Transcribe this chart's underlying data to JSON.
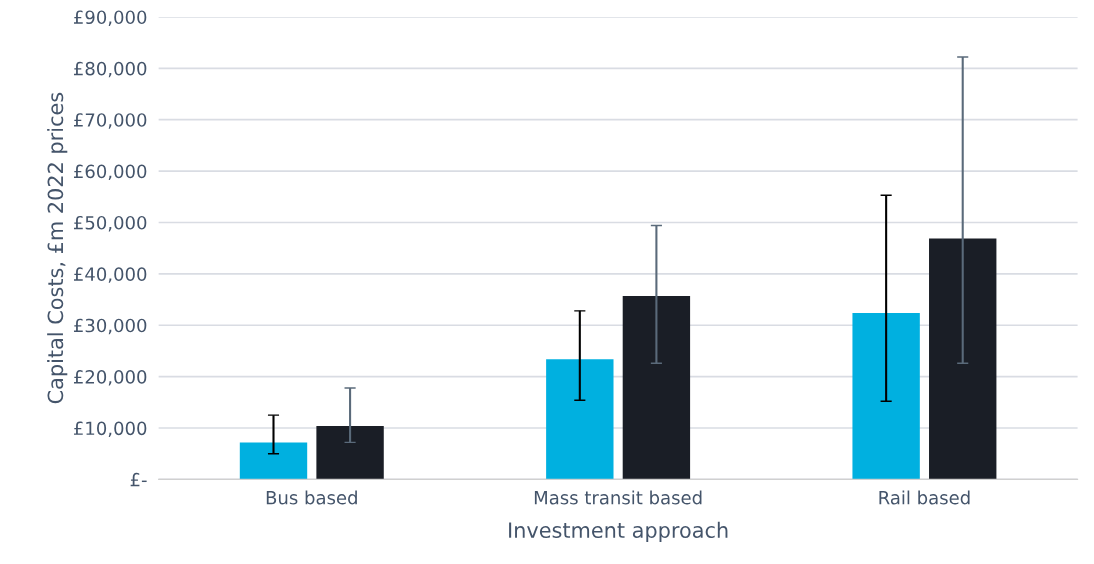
{
  "chart_data": {
    "type": "bar",
    "xlabel": "Investment approach",
    "ylabel": "Capital Costs, £m 2022 prices",
    "categories": [
      "Bus based",
      "Mass transit based",
      "Rail based"
    ],
    "series": [
      {
        "color": "#00b0e0",
        "values": [
          7200,
          23400,
          32400
        ],
        "errors": [
          [
            5000,
            12500
          ],
          [
            15400,
            32800
          ],
          [
            15200,
            55300
          ]
        ]
      },
      {
        "color": "#1a1e26",
        "values": [
          10400,
          35700,
          46900
        ],
        "errors": [
          [
            7200,
            17800
          ],
          [
            22600,
            49400
          ],
          [
            22600,
            82200
          ]
        ]
      }
    ],
    "ylim": [
      0,
      90000
    ],
    "yticks": [
      {
        "value": 0,
        "label": "£-"
      },
      {
        "value": 10000,
        "label": "£10,000"
      },
      {
        "value": 20000,
        "label": "£20,000"
      },
      {
        "value": 30000,
        "label": "£30,000"
      },
      {
        "value": 40000,
        "label": "£40,000"
      },
      {
        "value": 50000,
        "label": "£50,000"
      },
      {
        "value": 60000,
        "label": "£60,000"
      },
      {
        "value": 70000,
        "label": "£70,000"
      },
      {
        "value": 80000,
        "label": "£80,000"
      },
      {
        "value": 90000,
        "label": "£90,000"
      }
    ],
    "grid": "y",
    "legend": false
  }
}
